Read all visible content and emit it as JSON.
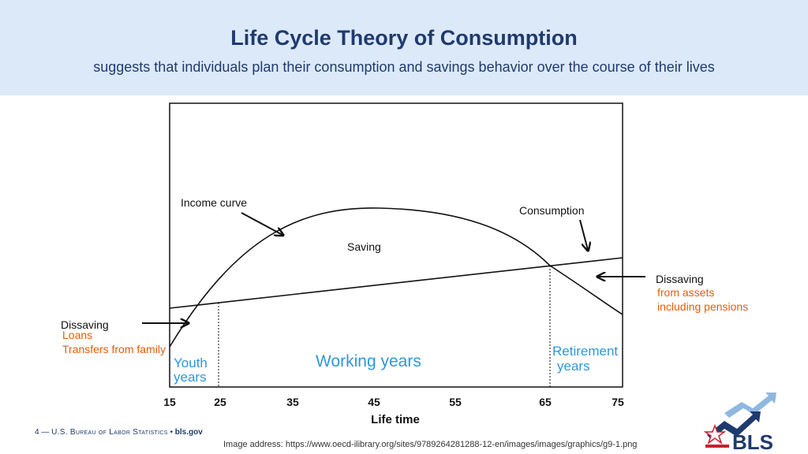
{
  "header": {
    "title": "Life Cycle Theory of Consumption",
    "subtitle": "suggests that individuals plan their consumption and savings behavior over the course of their lives"
  },
  "diagram": {
    "labels": {
      "income_curve": "Income curve",
      "consumption": "Consumption",
      "saving": "Saving",
      "dissaving_right": "Dissaving",
      "dissaving_left": "Dissaving",
      "x_axis": "Life time"
    },
    "ticks": [
      "15",
      "25",
      "35",
      "45",
      "55",
      "65",
      "75"
    ]
  },
  "annotations": {
    "loans": "Loans",
    "transfers": "Transfers from family",
    "from_assets": "from assets",
    "including_pensions": "including pensions",
    "youth": "Youth",
    "youth_years": "years",
    "working": "Working years",
    "retirement": "Retirement",
    "retirement_years": "years"
  },
  "footer": {
    "page_number": "4",
    "dash": "—",
    "agency": "U.S. Bureau of Labor Statistics",
    "bullet": "•",
    "site": "bls.gov",
    "image_address": "Image address: https://www.oecd-ilibrary.org/sites/9789264281288-12-en/images/images/graphics/g9-1.png",
    "logo_text": "BLS"
  },
  "colors": {
    "header_bg": "#dce9f8",
    "title": "#1f3a6e",
    "annotation_orange": "#e35d0a",
    "annotation_blue": "#2f97d9",
    "logo_red": "#c8202f",
    "logo_navy": "#1f3a6e",
    "logo_light_blue": "#8fb8e0"
  }
}
